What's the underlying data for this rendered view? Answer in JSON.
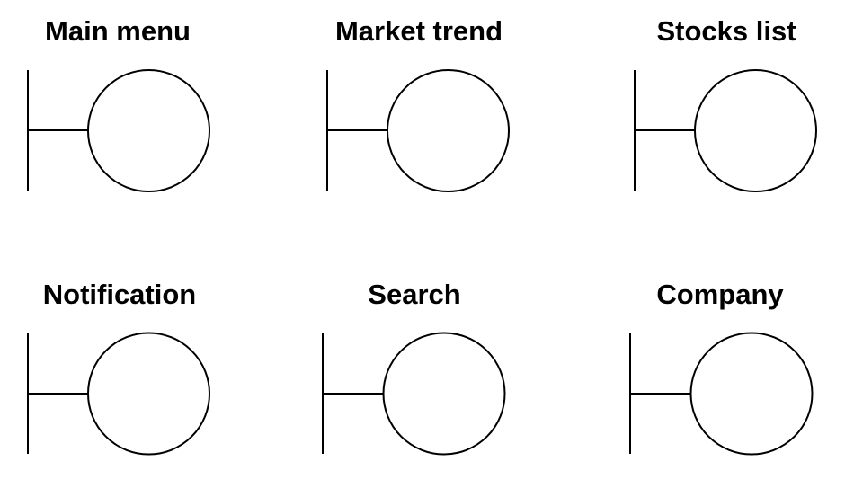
{
  "boundaries": [
    {
      "id": "main-menu",
      "label": "Main menu"
    },
    {
      "id": "market-trend",
      "label": "Market trend"
    },
    {
      "id": "stocks-list",
      "label": "Stocks list"
    },
    {
      "id": "notification",
      "label": "Notification"
    },
    {
      "id": "search",
      "label": "Search"
    },
    {
      "id": "company",
      "label": "Company"
    }
  ]
}
